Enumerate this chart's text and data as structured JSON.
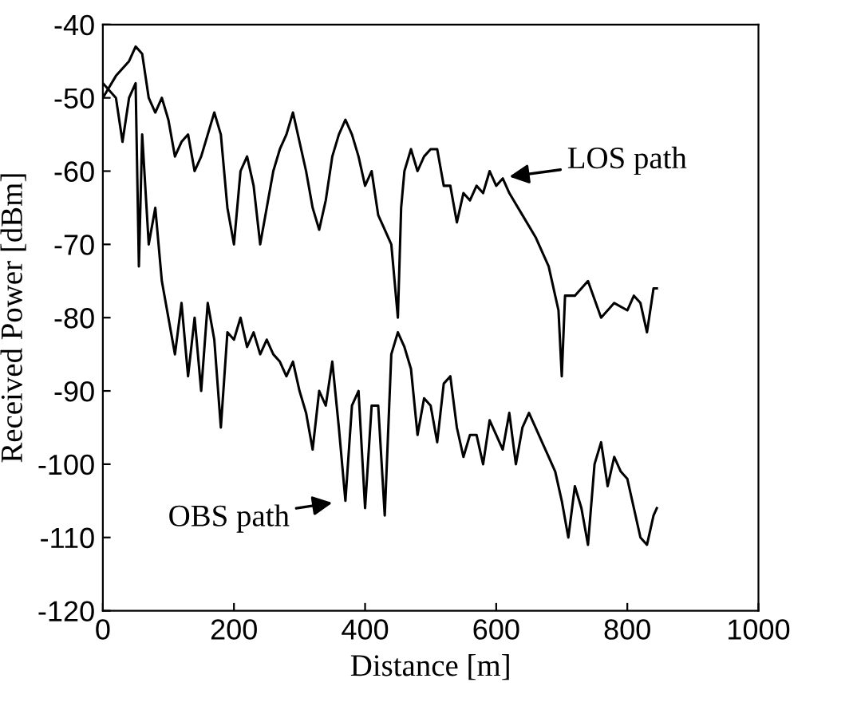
{
  "chart_data": {
    "type": "line",
    "xlabel": "Distance [m]",
    "ylabel": "Received Power [dBm]",
    "xlim": [
      0,
      1000
    ],
    "ylim": [
      -120,
      -40
    ],
    "xticks": [
      0,
      200,
      400,
      600,
      800,
      1000
    ],
    "yticks": [
      -120,
      -110,
      -100,
      -90,
      -80,
      -70,
      -60,
      -50,
      -40
    ],
    "grid": false,
    "marker": "none",
    "line_style": "solid",
    "series": [
      {
        "color": "#000000",
        "x": [
          0,
          20,
          40,
          50,
          60,
          70,
          80,
          90,
          100,
          110,
          120,
          130,
          140,
          150,
          160,
          170,
          180,
          190,
          200,
          210,
          220,
          230,
          240,
          250,
          260,
          270,
          280,
          290,
          300,
          310,
          320,
          330,
          340,
          350,
          360,
          370,
          380,
          390,
          400,
          410,
          420,
          430,
          440,
          450,
          455,
          460,
          470,
          480,
          490,
          500,
          510,
          520,
          530,
          540,
          550,
          560,
          570,
          580,
          590,
          600,
          610,
          620,
          640,
          660,
          680,
          690,
          695,
          700,
          705,
          720,
          740,
          760,
          780,
          800,
          810,
          820,
          830,
          840,
          845
        ],
        "values": [
          -50,
          -47,
          -45,
          -43,
          -44,
          -50,
          -52,
          -50,
          -53,
          -58,
          -56,
          -55,
          -60,
          -58,
          -55,
          -52,
          -55,
          -65,
          -70,
          -60,
          -58,
          -62,
          -70,
          -65,
          -60,
          -57,
          -55,
          -52,
          -56,
          -60,
          -65,
          -68,
          -64,
          -58,
          -55,
          -53,
          -55,
          -58,
          -62,
          -60,
          -66,
          -68,
          -70,
          -80,
          -65,
          -60,
          -57,
          -60,
          -58,
          -57,
          -57,
          -62,
          -62,
          -67,
          -63,
          -64,
          -62,
          -63,
          -60,
          -62,
          -61,
          -63,
          -66,
          -69,
          -73,
          -77,
          -79,
          -88,
          -77,
          -77,
          -75,
          -80,
          -78,
          -79,
          -77,
          -78,
          -82,
          -76,
          -76
        ]
      },
      {
        "color": "#000000",
        "x": [
          0,
          20,
          30,
          40,
          50,
          55,
          60,
          70,
          80,
          90,
          100,
          110,
          120,
          130,
          140,
          150,
          160,
          170,
          180,
          190,
          200,
          210,
          220,
          230,
          240,
          250,
          260,
          270,
          280,
          290,
          300,
          310,
          320,
          330,
          340,
          350,
          360,
          370,
          380,
          390,
          400,
          410,
          420,
          430,
          440,
          450,
          460,
          470,
          480,
          490,
          500,
          510,
          520,
          530,
          540,
          550,
          560,
          570,
          580,
          590,
          600,
          610,
          620,
          630,
          640,
          650,
          660,
          670,
          680,
          690,
          700,
          710,
          720,
          730,
          740,
          750,
          760,
          770,
          780,
          790,
          800,
          810,
          820,
          830,
          840,
          845
        ],
        "values": [
          -48,
          -50,
          -56,
          -50,
          -48,
          -73,
          -55,
          -70,
          -65,
          -75,
          -80,
          -85,
          -78,
          -88,
          -80,
          -90,
          -78,
          -83,
          -95,
          -82,
          -83,
          -80,
          -84,
          -82,
          -85,
          -83,
          -85,
          -86,
          -88,
          -86,
          -90,
          -93,
          -98,
          -90,
          -92,
          -86,
          -95,
          -105,
          -92,
          -90,
          -106,
          -92,
          -92,
          -107,
          -85,
          -82,
          -84,
          -87,
          -96,
          -91,
          -92,
          -97,
          -89,
          -88,
          -95,
          -99,
          -96,
          -96,
          -100,
          -94,
          -96,
          -98,
          -93,
          -100,
          -95,
          -93,
          -95,
          -97,
          -99,
          -101,
          -105,
          -110,
          -103,
          -106,
          -111,
          -100,
          -97,
          -103,
          -99,
          -101,
          -102,
          -106,
          -110,
          -111,
          -107,
          -106
        ]
      }
    ],
    "annotations": [
      {
        "text": "LOS path",
        "x": 600,
        "y": -61
      },
      {
        "text": "OBS path",
        "x": 370,
        "y": -105
      }
    ]
  }
}
